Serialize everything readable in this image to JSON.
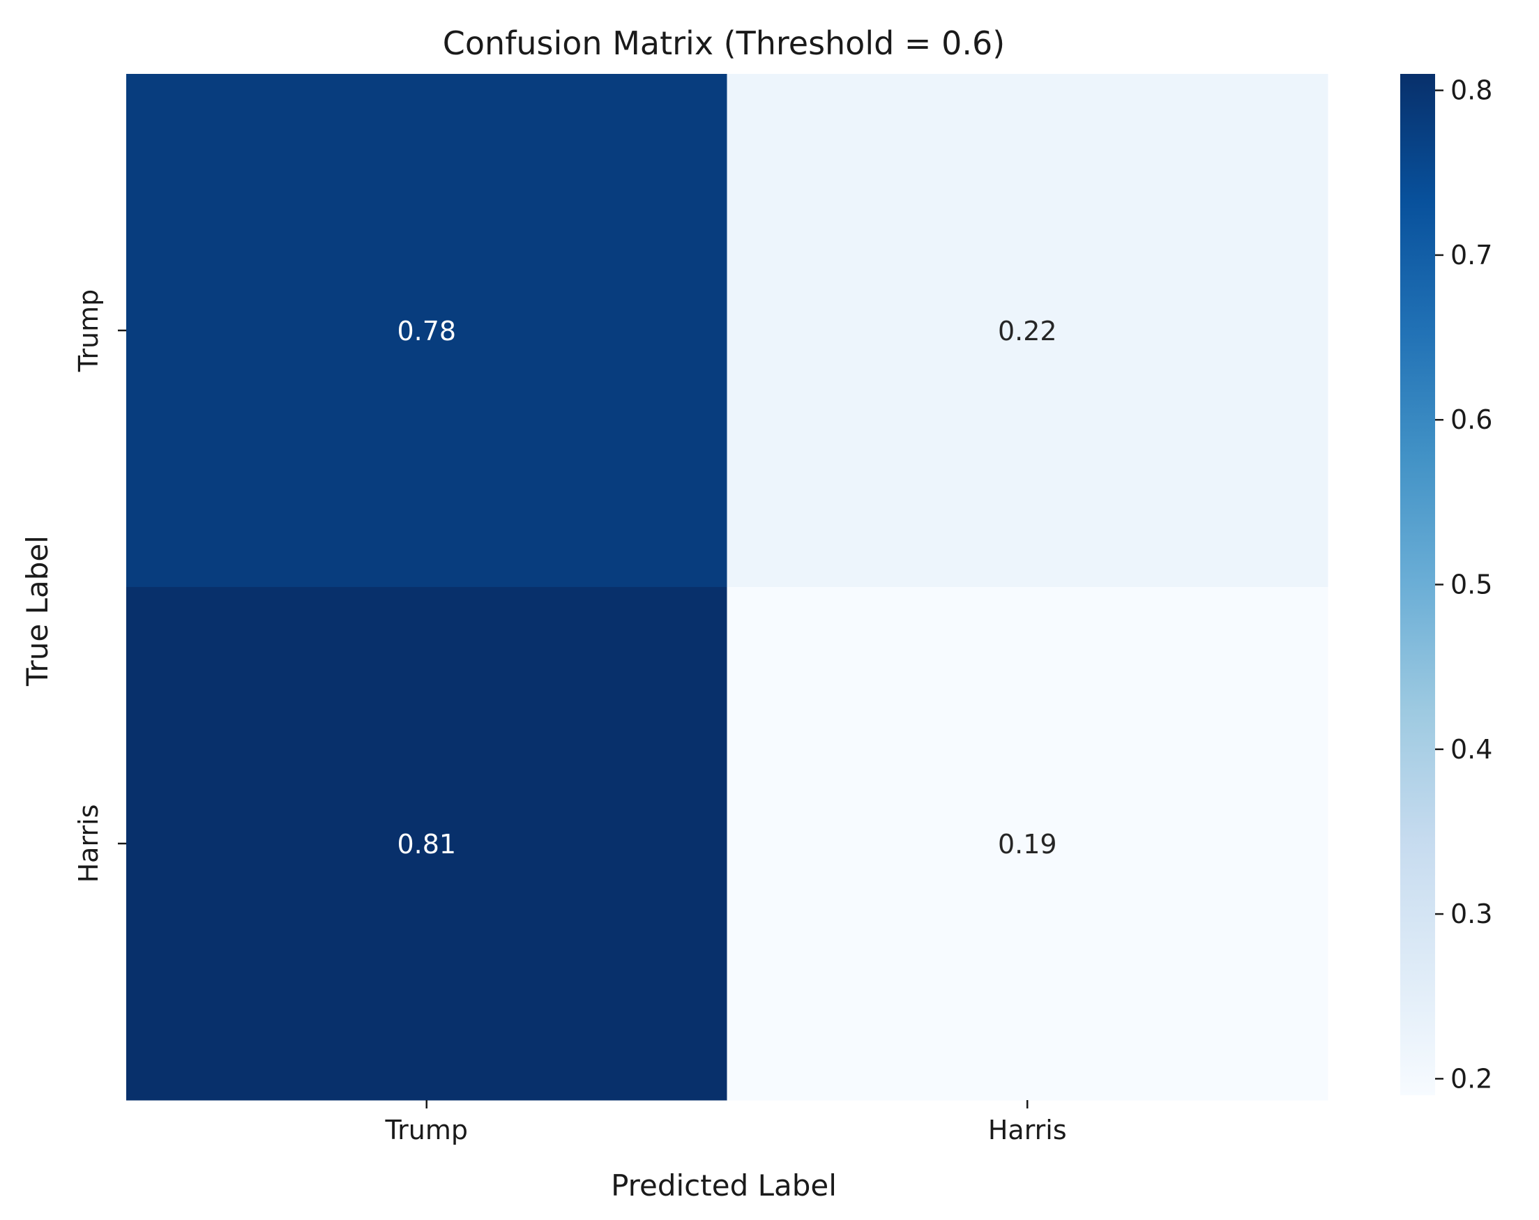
{
  "chart_data": {
    "type": "heatmap",
    "title": "Confusion Matrix (Threshold = 0.6)",
    "xlabel": "Predicted Label",
    "ylabel": "True Label",
    "x_categories": [
      "Trump",
      "Harris"
    ],
    "y_categories": [
      "Trump",
      "Harris"
    ],
    "values": [
      [
        0.78,
        0.22
      ],
      [
        0.81,
        0.19
      ]
    ],
    "value_labels": [
      [
        "0.78",
        "0.22"
      ],
      [
        "0.81",
        "0.19"
      ]
    ],
    "colormap": "Blues",
    "colorbar": {
      "range": [
        0.19,
        0.81
      ],
      "ticks": [
        0.2,
        0.3,
        0.4,
        0.5,
        0.6,
        0.7,
        0.8
      ],
      "tick_labels": [
        "0.2",
        "0.3",
        "0.4",
        "0.5",
        "0.6",
        "0.7",
        "0.8"
      ]
    },
    "grid": false,
    "legend": "colorbar-right"
  }
}
